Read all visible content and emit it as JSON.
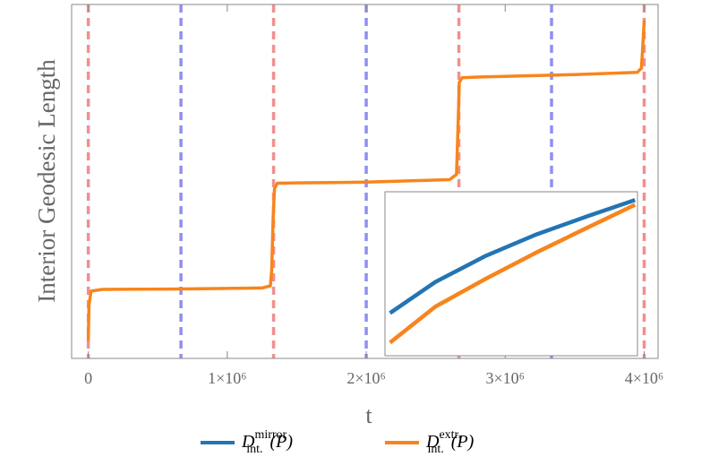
{
  "chart_data": {
    "type": "line",
    "xlabel": "t",
    "ylabel": "Interior Geodesic Length",
    "xlim": [
      -120000,
      4100000
    ],
    "ylim": [
      0,
      100
    ],
    "xticks": [
      0,
      {
        "value": 1000000,
        "label": "1×10⁶"
      },
      {
        "value": 2000000,
        "label": "2×10⁶"
      },
      {
        "value": 3000000,
        "label": "3×10⁶"
      },
      {
        "value": 4000000,
        "label": "4×10⁶"
      }
    ],
    "reference_lines": [
      {
        "x": 0,
        "color": "#f07c7c"
      },
      {
        "x": 666667,
        "color": "#7c7cf0"
      },
      {
        "x": 1333333,
        "color": "#f07c7c"
      },
      {
        "x": 2000000,
        "color": "#7c7cf0"
      },
      {
        "x": 2666667,
        "color": "#f07c7c"
      },
      {
        "x": 3333333,
        "color": "#7c7cf0"
      },
      {
        "x": 4000000,
        "color": "#f07c7c"
      }
    ],
    "series": [
      {
        "color": "#f7851c",
        "x": [
          0,
          5000,
          20000,
          100000,
          600000,
          1250000,
          1310000,
          1320000,
          1330000,
          1340000,
          1360000,
          1500000,
          2000000,
          2600000,
          2650000,
          2660000,
          2670000,
          2690000,
          2800000,
          3500000,
          3950000,
          3980000,
          3990000,
          4000000
        ],
        "values": [
          5,
          15,
          19,
          19.5,
          19.6,
          19.9,
          20.5,
          25,
          40,
          48,
          49.5,
          49.6,
          49.8,
          50.5,
          52,
          65,
          78,
          79.3,
          79.5,
          80.2,
          80.8,
          82,
          88,
          95.5
        ]
      }
    ],
    "inset": {
      "xlim": [
        0,
        1
      ],
      "ylim": [
        0,
        1
      ],
      "series": [
        {
          "name": "D",
          "subscript": "int.",
          "superscript": "mirror",
          "argument": "(P)",
          "color": "#2474b2",
          "x": [
            0.02,
            0.2,
            0.4,
            0.6,
            0.8,
            0.99
          ],
          "values": [
            0.26,
            0.45,
            0.61,
            0.74,
            0.85,
            0.95
          ]
        },
        {
          "name": "D",
          "subscript": "int.",
          "superscript": "extr.",
          "argument": "(P)",
          "color": "#f7851c",
          "x": [
            0.02,
            0.2,
            0.4,
            0.6,
            0.8,
            0.99
          ],
          "values": [
            0.08,
            0.3,
            0.47,
            0.63,
            0.78,
            0.92
          ]
        }
      ]
    }
  }
}
